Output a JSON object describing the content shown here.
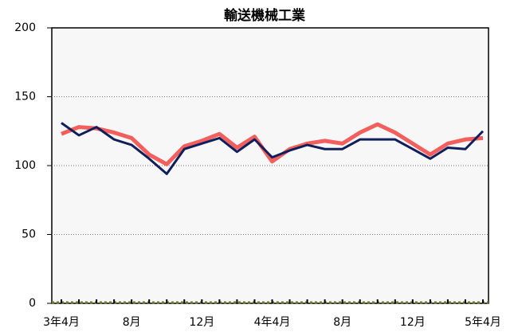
{
  "chart_data": {
    "type": "line",
    "title": "輸送機械工業",
    "categories": [
      "3年4月",
      null,
      null,
      null,
      "8月",
      null,
      null,
      null,
      "12月",
      null,
      null,
      null,
      "4年4月",
      null,
      null,
      null,
      "8月",
      null,
      null,
      null,
      "12月",
      null,
      null,
      null,
      "5年4月"
    ],
    "series": [
      {
        "color": "#f25f5c",
        "width": 5,
        "values": [
          123,
          128,
          127,
          124,
          120,
          108,
          101,
          114,
          118,
          123,
          113,
          121,
          103,
          112,
          116,
          118,
          116,
          124,
          130,
          124,
          116,
          108,
          116,
          119,
          120
        ]
      },
      {
        "color": "#0e1f5b",
        "width": 3,
        "values": [
          131,
          122,
          128,
          119,
          115,
          105,
          94,
          112,
          116,
          120,
          110,
          119,
          106,
          111,
          115,
          112,
          112,
          119,
          119,
          119,
          112,
          105,
          113,
          112,
          125
        ]
      }
    ],
    "ylim": [
      0,
      200
    ],
    "yticks": [
      0,
      50,
      100,
      150,
      200
    ],
    "grid": true
  }
}
